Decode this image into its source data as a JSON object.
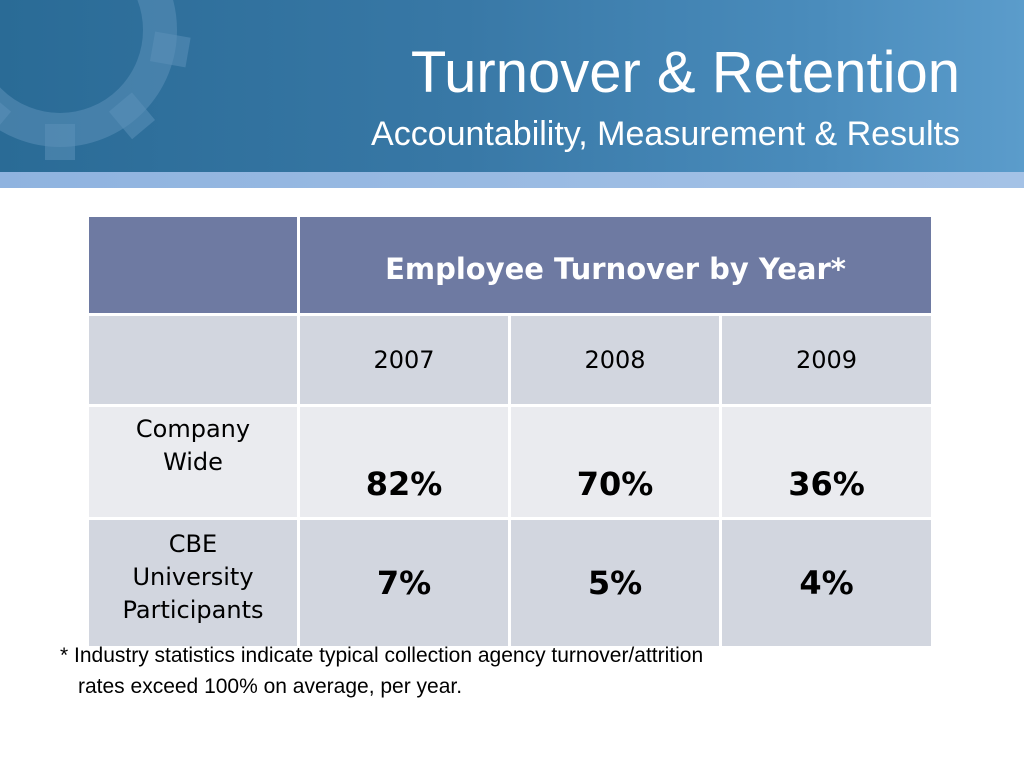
{
  "header": {
    "title": "Turnover & Retention",
    "subtitle": "Accountability, Measurement & Results"
  },
  "colors": {
    "banner": "#3878a6",
    "table_header": "#6e7aa2",
    "row_dark": "#d2d6df",
    "row_light": "#eaebef"
  },
  "table": {
    "title": "Employee Turnover by Year*",
    "years": [
      "2007",
      "2008",
      "2009"
    ],
    "rows": [
      {
        "label_lines": [
          "Company",
          "Wide"
        ],
        "values": [
          "82%",
          "70%",
          "36%"
        ]
      },
      {
        "label_lines": [
          "CBE",
          "University",
          "Participants"
        ],
        "values": [
          "7%",
          "5%",
          "4%"
        ]
      }
    ]
  },
  "footnote": {
    "line1": "* Industry statistics indicate typical collection agency turnover/attrition",
    "line2": "rates exceed 100% on average, per year."
  }
}
